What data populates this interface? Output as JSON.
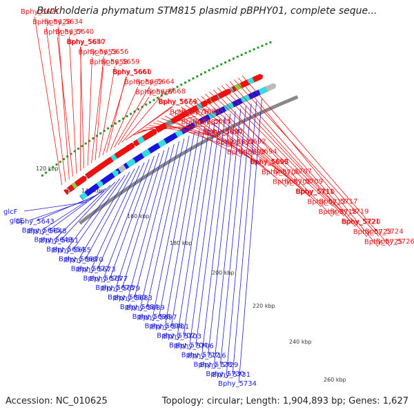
{
  "title": "Burkholderia phymatum STM815 plasmid pBPHY01, complete seque...",
  "footer": {
    "accession": "Accession: NC_010625",
    "topology": "Topology: circular; Length: 1,904,893 bp; Genes: 1,627"
  },
  "colors": {
    "forward_label": "#e41a1c",
    "reverse_label": "#1a1adc",
    "forward_arrow": "#ee1111",
    "reverse_arrow": "#1515dd",
    "cds_tick": "#229922",
    "backbone": "#888888"
  },
  "scale_ticks": [
    "120 kbp",
    "140 kbp",
    "160 kbp",
    "180 kbp",
    "200 kbp",
    "220 kbp",
    "240 kbp",
    "260 kbp"
  ],
  "forward_labels": [
    "Bphy_5621",
    "Bphy_5628",
    "Bphy_5634",
    "Bphy_5637",
    "Bphy_5640",
    "Bphy_5647",
    "Bphy_5650",
    "Bphy_5653",
    "Bphy_5656",
    "Bphy_5658",
    "Bphy_5659",
    "Bphy_5660",
    "Bphy_5661",
    "Bphy_5662",
    "Bphy_5664",
    "Bphy_5667",
    "Bphy_5668",
    "Bphy_5669",
    "Bphy_5674",
    "Bphy_5676",
    "Bphy_5681",
    "Bphy_5682",
    "Bphy_5685",
    "Bphy_5687",
    "Bphy_5690",
    "Bphy_5691",
    "Bphy_5692",
    "Bphy_5693",
    "Bphy_5694",
    "Bphy_5695",
    "Bphy_5699",
    "Bphy_5700",
    "Bphy_5707",
    "Bphy_5708",
    "Bphy_5709",
    "Bphy_5710",
    "Bphy_5711",
    "Bphy_5713",
    "Bphy_5717",
    "Bphy_5718",
    "Bphy_5719",
    "Bphy_5720",
    "Bphy_5721",
    "Bphy_5723",
    "Bphy_5724",
    "Bphy_5725",
    "Bphy_5726"
  ],
  "reverse_labels": [
    "glcF",
    "glcE",
    "Bphy_5643",
    "Bphy_5645",
    "Bphy_5648",
    "Bphy_5649",
    "Bphy_5651",
    "Bphy_5654",
    "Bphy_5655",
    "Bphy_5666",
    "Bphy_5670",
    "Bphy_5672",
    "Bphy_5673",
    "Bphy_5675",
    "Bphy_5677",
    "Bphy_5678",
    "Bphy_5679",
    "Bphy_5680",
    "Bphy_5683",
    "Bphy_5684",
    "Bphy_5689",
    "Bphy_5696",
    "Bphy_5697",
    "Bphy_5698",
    "Bphy_5701",
    "Bphy_5702",
    "Bphy_5703",
    "Bphy_5704",
    "Bphy_5706",
    "Bphy_5712",
    "Bphy_5716",
    "Bphy_5728",
    "Bphy_5729",
    "Bphy_5730",
    "Bphy_5731",
    "Bphy_5734"
  ]
}
